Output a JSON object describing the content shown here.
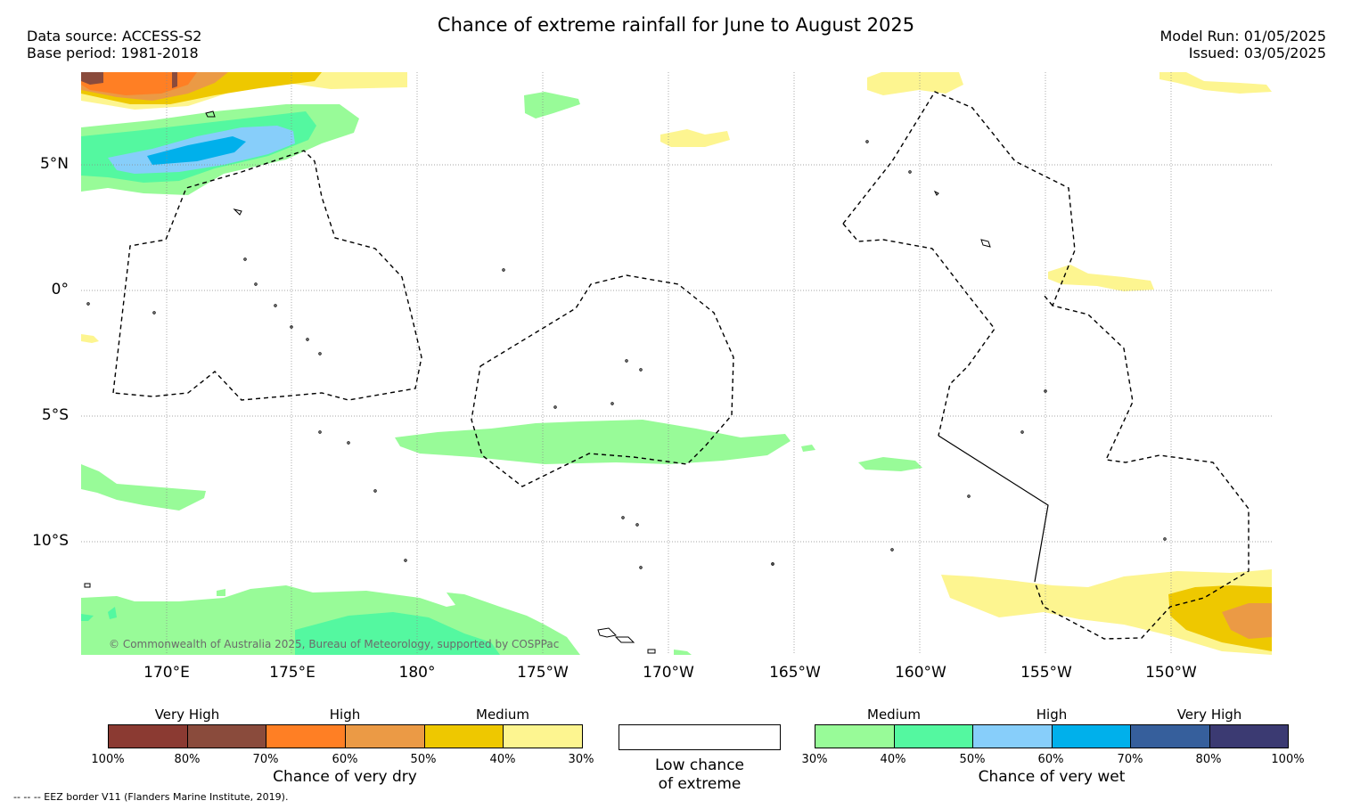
{
  "header": {
    "title": "Chance of extreme rainfall for June to August 2025",
    "data_source": "Data source: ACCESS-S2",
    "base_period": "Base period: 1981-2018",
    "model_run": "Model Run: 01/05/2025",
    "issued": "Issued: 03/05/2025"
  },
  "map": {
    "lat_labels": [
      "5°N",
      "0°",
      "5°S",
      "10°S"
    ],
    "lon_labels": [
      "170°E",
      "175°E",
      "180°",
      "175°W",
      "170°W",
      "165°W",
      "160°W",
      "155°W",
      "150°W"
    ],
    "copyright": "© Commonwealth of Australia 2025, Bureau of Meteorology, supported by COSPPac",
    "eez_note": "--  --  -- EEZ border V11 (Flanders Marine Institute, 2019)."
  },
  "legend": {
    "dry": {
      "title": "Chance of very dry",
      "categories": [
        "Very High",
        "High",
        "Medium"
      ],
      "ticks": [
        "100%",
        "80%",
        "70%",
        "60%",
        "50%",
        "40%",
        "30%"
      ],
      "colors": [
        "#8b3a32",
        "#8a4b3c",
        "#ff7f24",
        "#eb9a45",
        "#eec800",
        "#fdf590"
      ]
    },
    "low": {
      "line1": "Low chance",
      "line2": "of extreme"
    },
    "wet": {
      "title": "Chance of very wet",
      "categories": [
        "Medium",
        "High",
        "Very High"
      ],
      "ticks": [
        "30%",
        "40%",
        "50%",
        "60%",
        "70%",
        "80%",
        "100%"
      ],
      "colors": [
        "#98fb98",
        "#54f8a0",
        "#87cefa",
        "#00b0eb",
        "#365f9c",
        "#3b3a72"
      ]
    }
  }
}
